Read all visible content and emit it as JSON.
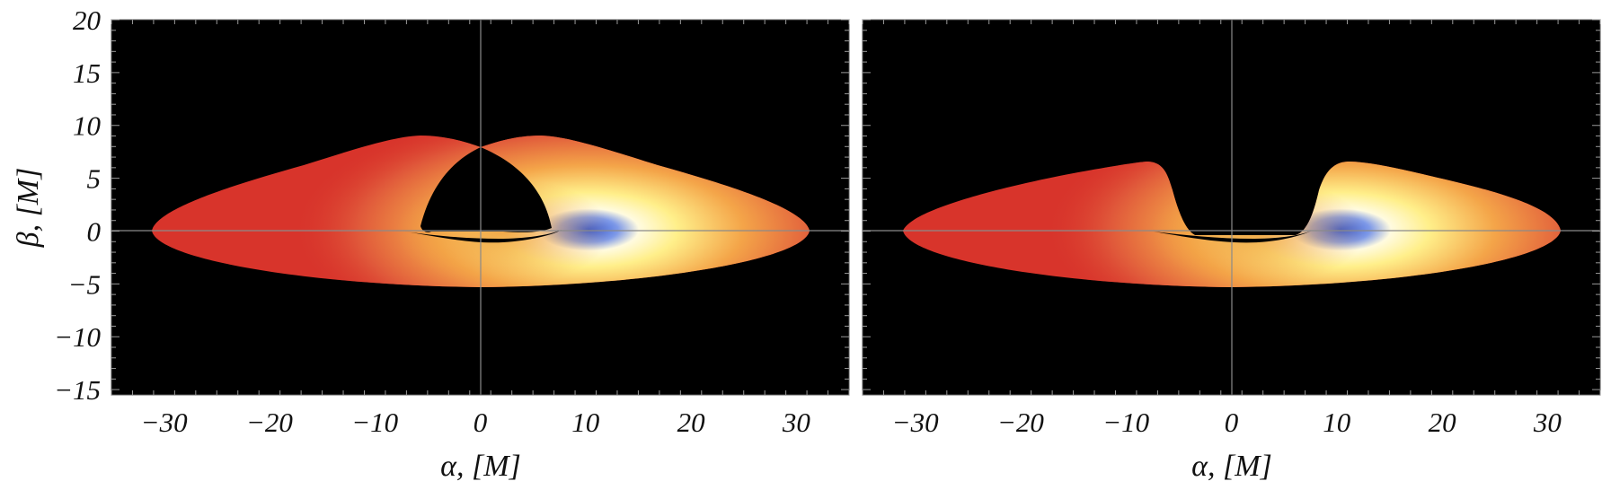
{
  "figure": {
    "panels": [
      {
        "id": "left",
        "x_ticks": [
          "−30",
          "−20",
          "−10",
          "0",
          "10",
          "20",
          "30"
        ],
        "y_ticks": [
          "20",
          "15",
          "10",
          "5",
          "0",
          "−5",
          "−10",
          "−15"
        ],
        "xlabel": "α, [M]",
        "ylabel": "β, [M]",
        "image": "disk-image-with-arch"
      },
      {
        "id": "right",
        "x_ticks": [
          "−30",
          "−20",
          "−10",
          "0",
          "10",
          "20",
          "30"
        ],
        "xlabel": "α, [M]",
        "image": "disk-image-with-lobes"
      }
    ],
    "axes": {
      "x_range": [
        -35,
        35
      ],
      "y_range": [
        -15.5,
        20
      ],
      "x_tick_values": [
        -30,
        -20,
        -10,
        0,
        10,
        20,
        30
      ],
      "y_tick_values": [
        20,
        15,
        10,
        5,
        0,
        -5,
        -10,
        -15
      ]
    },
    "colors": {
      "background": "#000000",
      "disk_red": "#d8342b",
      "disk_orange": "#ec8a3c",
      "disk_yellow": "#ffffb0",
      "disk_blue": "#2d55d6",
      "crosshair": "#8a8a8a"
    }
  }
}
